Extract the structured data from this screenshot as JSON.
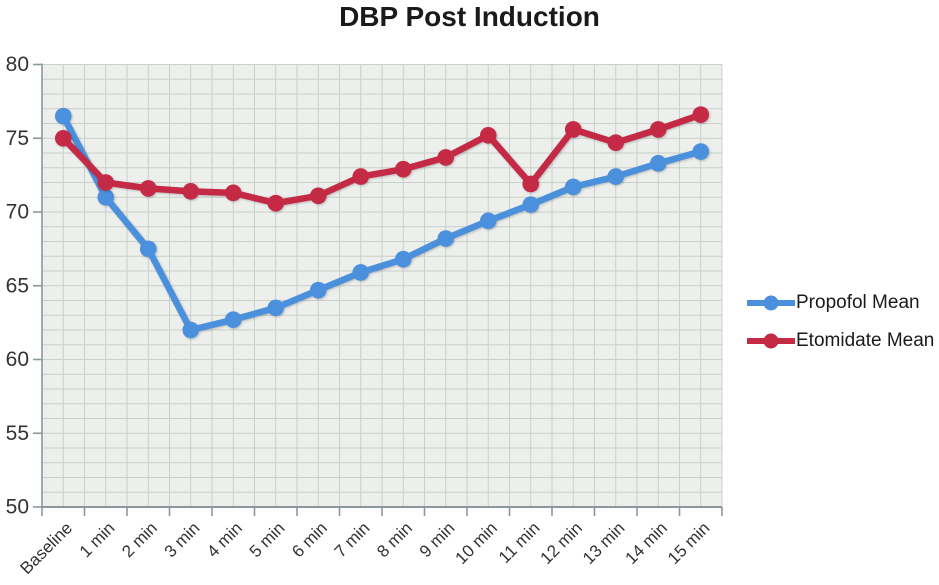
{
  "chart_data": {
    "type": "line",
    "title": "DBP Post Induction",
    "categories": [
      "Baseline",
      "1 min",
      "2 min",
      "3 min",
      "4 min",
      "5 min",
      "6 min",
      "7 min",
      "8 min",
      "9 min",
      "10 min",
      "11 min",
      "12 min",
      "13 min",
      "14 min",
      "15 min"
    ],
    "series": [
      {
        "name": "Propofol Mean",
        "color": "#4A90DC",
        "values": [
          76.5,
          71.0,
          67.5,
          62.0,
          62.7,
          63.5,
          64.7,
          65.9,
          66.8,
          68.2,
          69.4,
          70.5,
          71.7,
          72.4,
          73.3,
          74.1
        ]
      },
      {
        "name": "Etomidate Mean",
        "color": "#C42945",
        "values": [
          75.0,
          72.0,
          71.6,
          71.4,
          71.3,
          70.6,
          71.1,
          72.4,
          72.9,
          73.7,
          75.2,
          71.9,
          75.6,
          74.7,
          75.6,
          76.6
        ]
      }
    ],
    "xlabel": "",
    "ylabel": "",
    "ylim": [
      50,
      80
    ],
    "yticks": [
      50,
      55,
      60,
      65,
      70,
      75,
      80
    ],
    "grid": true,
    "legend_position": "right"
  },
  "style": {
    "plot_bg": "#EDEFEC",
    "grid_color": "#C9CFC9",
    "axis_color": "#8D989C",
    "tick_label_color": "#333333",
    "title_color": "#1a1a1a"
  }
}
